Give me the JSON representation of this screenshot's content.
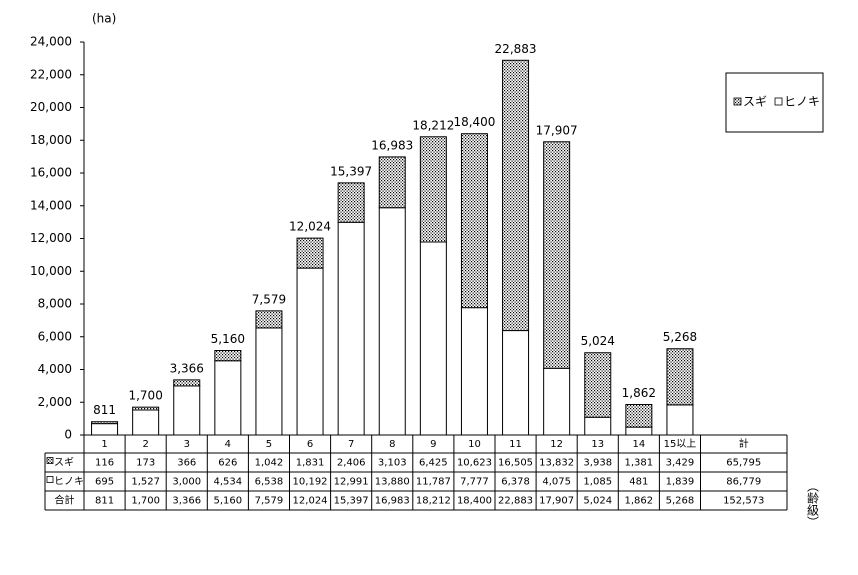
{
  "chart_data": {
    "type": "bar",
    "stacked": true,
    "y_unit_label": "(ha)",
    "x_label": "（齢級）",
    "categories": [
      "1",
      "2",
      "3",
      "4",
      "5",
      "6",
      "7",
      "8",
      "9",
      "10",
      "11",
      "12",
      "13",
      "14",
      "15以上"
    ],
    "series": [
      {
        "name": "スギ",
        "color": "#000000",
        "hatch": true,
        "values": [
          116,
          173,
          366,
          626,
          1042,
          1831,
          2406,
          3103,
          6425,
          10623,
          16505,
          13832,
          3938,
          1381,
          3429
        ],
        "value_labels": [
          "116",
          "173",
          "366",
          "626",
          "1,042",
          "1,831",
          "2,406",
          "3,103",
          "6,425",
          "10,623",
          "16,505",
          "13,832",
          "3,938",
          "1,381",
          "3,429"
        ],
        "sum": "65,795"
      },
      {
        "name": "ヒノキ",
        "color": "#ffffff",
        "hatch": false,
        "values": [
          695,
          1527,
          3000,
          4534,
          6538,
          10192,
          12991,
          13880,
          11787,
          7777,
          6378,
          4075,
          1085,
          481,
          1839
        ],
        "value_labels": [
          "695",
          "1,527",
          "3,000",
          "4,534",
          "6,538",
          "10,192",
          "12,991",
          "13,880",
          "11,787",
          "7,777",
          "6,378",
          "4,075",
          "1,085",
          "481",
          "1,839"
        ],
        "sum": "86,779"
      }
    ],
    "totals": {
      "name": "合計",
      "values": [
        811,
        1700,
        3366,
        5160,
        7579,
        12024,
        15397,
        16983,
        18212,
        18400,
        22883,
        17907,
        5024,
        1862,
        5268
      ],
      "value_labels": [
        "811",
        "1,700",
        "3,366",
        "5,160",
        "7,579",
        "12,024",
        "15,397",
        "16,983",
        "18,212",
        "18,400",
        "22,883",
        "17,907",
        "5,024",
        "1,862",
        "5,268"
      ],
      "sum": "152,573"
    },
    "sum_header": "計",
    "ylim": [
      0,
      24000
    ],
    "yticks": [
      0,
      {
        "value": 2000,
        "label": "2,000"
      },
      {
        "value": 4000,
        "label": "4,000"
      },
      {
        "value": 6000,
        "label": "6,000"
      },
      {
        "value": 8000,
        "label": "8,000"
      },
      {
        "value": 10000,
        "label": "10,000"
      },
      {
        "value": 12000,
        "label": "12,000"
      },
      {
        "value": 14000,
        "label": "14,000"
      },
      {
        "value": 16000,
        "label": "16,000"
      },
      {
        "value": 18000,
        "label": "18,000"
      },
      {
        "value": 20000,
        "label": "20,000"
      },
      {
        "value": 22000,
        "label": "22,000"
      },
      {
        "value": 24000,
        "label": "24,000"
      }
    ],
    "legend": "upper right"
  }
}
